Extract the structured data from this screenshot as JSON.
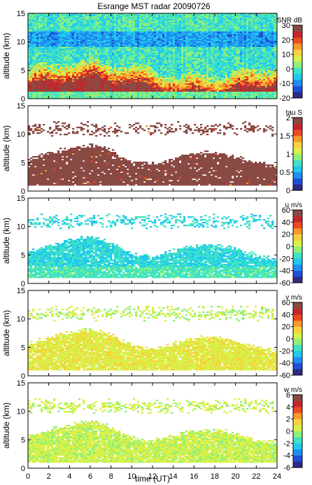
{
  "chart_data": {
    "title": "Esrange MST radar 20090726",
    "type": "heatmap",
    "xlabel": "time (UT)",
    "xlim": [
      0,
      24
    ],
    "xticks": [
      0,
      2,
      4,
      6,
      8,
      10,
      12,
      14,
      16,
      18,
      20,
      22,
      24
    ],
    "panels": [
      {
        "ylabel": "altitude (km)",
        "ylim": [
          0,
          15
        ],
        "yticks": [
          0,
          5,
          10,
          15
        ],
        "colorbar_label": "SNR dB",
        "clim": [
          -20,
          30
        ],
        "colorbar_ticks": [
          -20,
          -10,
          0,
          10,
          20,
          30
        ],
        "field": "snr"
      },
      {
        "ylabel": "altitude (km)",
        "ylim": [
          0,
          15
        ],
        "yticks": [
          0,
          5,
          10,
          15
        ],
        "colorbar_label": "tau S",
        "clim": [
          0,
          2
        ],
        "colorbar_ticks": [
          0,
          0.5,
          1,
          1.5,
          2
        ],
        "field": "tau"
      },
      {
        "ylabel": "altitude (km)",
        "ylim": [
          0,
          15
        ],
        "yticks": [
          0,
          5,
          10,
          15
        ],
        "colorbar_label": "u m/s",
        "clim": [
          -60,
          60
        ],
        "colorbar_ticks": [
          -60,
          -40,
          -20,
          0,
          20,
          40,
          60
        ],
        "field": "u"
      },
      {
        "ylabel": "altitude (km)",
        "ylim": [
          0,
          15
        ],
        "yticks": [
          0,
          5,
          10,
          15
        ],
        "colorbar_label": "v m/s",
        "clim": [
          -60,
          60
        ],
        "colorbar_ticks": [
          -60,
          -40,
          -20,
          0,
          20,
          40,
          60
        ],
        "field": "v"
      },
      {
        "ylabel": "altitude (km)",
        "ylim": [
          0,
          15
        ],
        "yticks": [
          0,
          5,
          10,
          15
        ],
        "colorbar_label": "w m/s",
        "clim": [
          -6,
          6
        ],
        "colorbar_ticks": [
          -6,
          -4,
          -2,
          0,
          2,
          4,
          6
        ],
        "field": "w"
      }
    ],
    "colormap": [
      "#2e2a87",
      "#1f4fd8",
      "#1e8ff0",
      "#22c8ef",
      "#3fe3c4",
      "#8ef07a",
      "#d8f04a",
      "#f7d23a",
      "#f79a2a",
      "#ee4a22",
      "#c3262c",
      "#8a4a44"
    ]
  }
}
